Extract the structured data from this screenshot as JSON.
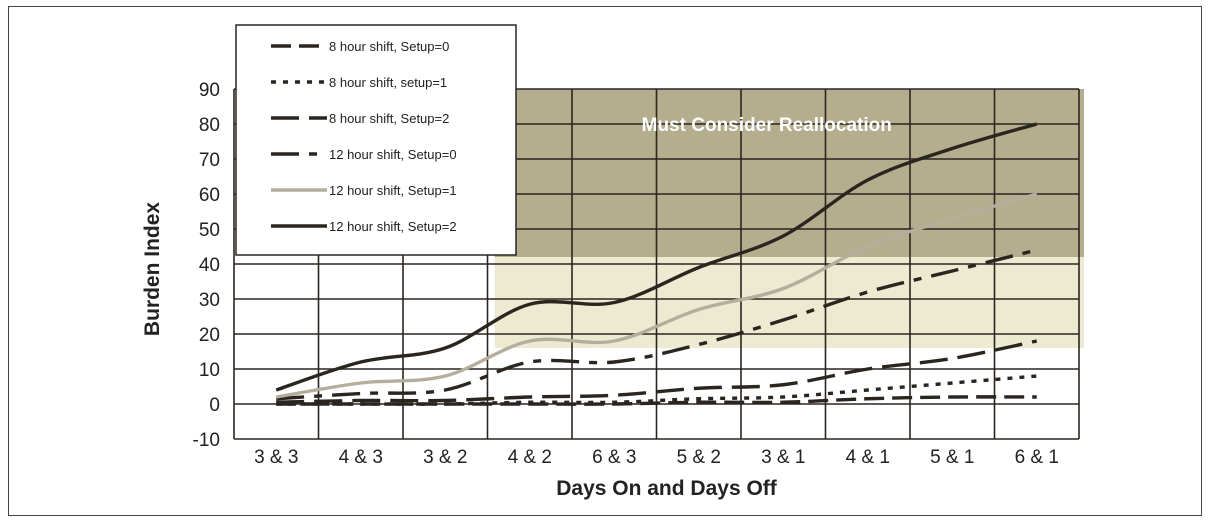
{
  "chart_data": {
    "type": "line",
    "title": "",
    "xlabel": "Days On and Days Off",
    "ylabel": "Burden Index",
    "categories": [
      "3 & 3",
      "4 & 3",
      "3 & 2",
      "4 & 2",
      "6 & 3",
      "5 & 2",
      "3 & 1",
      "4 & 1",
      "5 & 1",
      "6 & 1"
    ],
    "ylim": [
      -10,
      90
    ],
    "yticks": [
      -10,
      0,
      10,
      20,
      30,
      40,
      50,
      60,
      70,
      80,
      90
    ],
    "grid": true,
    "legend_position": "top-left",
    "zones": [
      {
        "label": "",
        "x_from": "4 & 2",
        "y_from": 16,
        "y_to": 42,
        "color": "#ecead0"
      },
      {
        "label": "Must Consider Reallocation",
        "x_from": "4 & 2",
        "y_from": 42,
        "y_to": 90,
        "color": "#b4ad8e"
      }
    ],
    "series": [
      {
        "name": "8 hour shift, Setup=0",
        "values": [
          0,
          0,
          0,
          0,
          0,
          0.5,
          0.5,
          1.5,
          2,
          2
        ],
        "color": "#2b2520",
        "dash": "20,8"
      },
      {
        "name": "8 hour shift, setup=1",
        "values": [
          0,
          0,
          0,
          0.5,
          0.5,
          1.5,
          2,
          4,
          6,
          8
        ],
        "color": "#2b2520",
        "dash": "5,7"
      },
      {
        "name": "8 hour shift, Setup=2",
        "values": [
          0.5,
          1,
          1,
          2,
          2.5,
          4.5,
          5.5,
          10,
          13,
          18
        ],
        "color": "#2b2520",
        "dash": "28,10"
      },
      {
        "name": "12 hour shift, Setup=0",
        "values": [
          1.5,
          3,
          4,
          12,
          12,
          17,
          24,
          32,
          38,
          44
        ],
        "color": "#2b2520",
        "dash": "28,10,8,10"
      },
      {
        "name": "12 hour shift, Setup=1",
        "values": [
          2,
          6,
          8,
          18,
          18,
          27,
          33,
          45,
          53,
          60
        ],
        "color": "#b5ae9c",
        "dash": ""
      },
      {
        "name": "12 hour shift, Setup=2",
        "values": [
          4,
          12,
          16,
          28.5,
          29,
          39,
          48,
          64,
          73,
          80
        ],
        "color": "#2b2520",
        "dash": ""
      }
    ]
  }
}
